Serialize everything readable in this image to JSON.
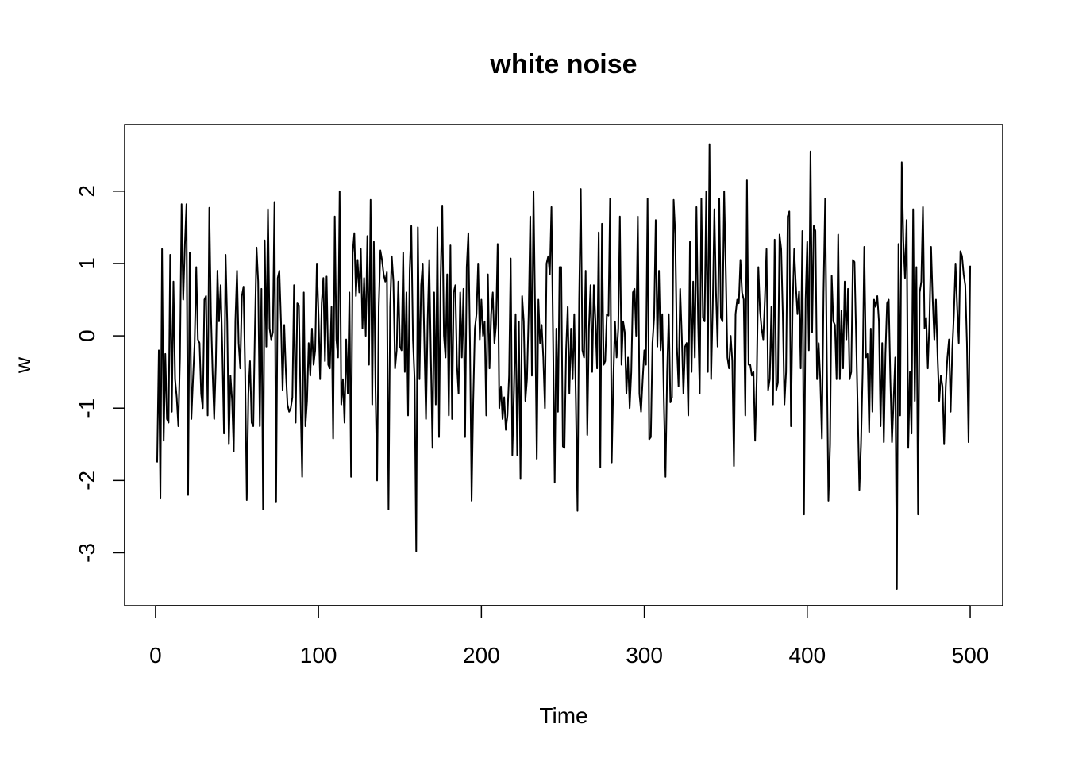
{
  "chart_data": {
    "type": "line",
    "title": "white noise",
    "xlabel": "Time",
    "ylabel": "w",
    "color": "#000000",
    "xlim": [
      -18.96,
      519.96
    ],
    "ylim": [
      -3.73,
      2.92
    ],
    "xticks": [
      0,
      100,
      200,
      300,
      400,
      500
    ],
    "yticks": [
      -3,
      -2,
      -1,
      0,
      1,
      2
    ],
    "grid": false,
    "x": [
      1,
      2,
      3,
      4,
      5,
      6,
      7,
      8,
      9,
      10,
      11,
      12,
      13,
      14,
      15,
      16,
      17,
      18,
      19,
      20,
      21,
      22,
      23,
      24,
      25,
      26,
      27,
      28,
      29,
      30,
      31,
      32,
      33,
      34,
      35,
      36,
      37,
      38,
      39,
      40,
      41,
      42,
      43,
      44,
      45,
      46,
      47,
      48,
      49,
      50,
      51,
      52,
      53,
      54,
      55,
      56,
      57,
      58,
      59,
      60,
      61,
      62,
      63,
      64,
      65,
      66,
      67,
      68,
      69,
      70,
      71,
      72,
      73,
      74,
      75,
      76,
      77,
      78,
      79,
      80,
      81,
      82,
      83,
      84,
      85,
      86,
      87,
      88,
      89,
      90,
      91,
      92,
      93,
      94,
      95,
      96,
      97,
      98,
      99,
      100,
      101,
      102,
      103,
      104,
      105,
      106,
      107,
      108,
      109,
      110,
      111,
      112,
      113,
      114,
      115,
      116,
      117,
      118,
      119,
      120,
      121,
      122,
      123,
      124,
      125,
      126,
      127,
      128,
      129,
      130,
      131,
      132,
      133,
      134,
      135,
      136,
      137,
      138,
      139,
      140,
      141,
      142,
      143,
      144,
      145,
      146,
      147,
      148,
      149,
      150,
      151,
      152,
      153,
      154,
      155,
      156,
      157,
      158,
      159,
      160,
      161,
      162,
      163,
      164,
      165,
      166,
      167,
      168,
      169,
      170,
      171,
      172,
      173,
      174,
      175,
      176,
      177,
      178,
      179,
      180,
      181,
      182,
      183,
      184,
      185,
      186,
      187,
      188,
      189,
      190,
      191,
      192,
      193,
      194,
      195,
      196,
      197,
      198,
      199,
      200,
      201,
      202,
      203,
      204,
      205,
      206,
      207,
      208,
      209,
      210,
      211,
      212,
      213,
      214,
      215,
      216,
      217,
      218,
      219,
      220,
      221,
      222,
      223,
      224,
      225,
      226,
      227,
      228,
      229,
      230,
      231,
      232,
      233,
      234,
      235,
      236,
      237,
      238,
      239,
      240,
      241,
      242,
      243,
      244,
      245,
      246,
      247,
      248,
      249,
      250,
      251,
      252,
      253,
      254,
      255,
      256,
      257,
      258,
      259,
      260,
      261,
      262,
      263,
      264,
      265,
      266,
      267,
      268,
      269,
      270,
      271,
      272,
      273,
      274,
      275,
      276,
      277,
      278,
      279,
      280,
      281,
      282,
      283,
      284,
      285,
      286,
      287,
      288,
      289,
      290,
      291,
      292,
      293,
      294,
      295,
      296,
      297,
      298,
      299,
      300,
      301,
      302,
      303,
      304,
      305,
      306,
      307,
      308,
      309,
      310,
      311,
      312,
      313,
      314,
      315,
      316,
      317,
      318,
      319,
      320,
      321,
      322,
      323,
      324,
      325,
      326,
      327,
      328,
      329,
      330,
      331,
      332,
      333,
      334,
      335,
      336,
      337,
      338,
      339,
      340,
      341,
      342,
      343,
      344,
      345,
      346,
      347,
      348,
      349,
      350,
      351,
      352,
      353,
      354,
      355,
      356,
      357,
      358,
      359,
      360,
      361,
      362,
      363,
      364,
      365,
      366,
      367,
      368,
      369,
      370,
      371,
      372,
      373,
      374,
      375,
      376,
      377,
      378,
      379,
      380,
      381,
      382,
      383,
      384,
      385,
      386,
      387,
      388,
      389,
      390,
      391,
      392,
      393,
      394,
      395,
      396,
      397,
      398,
      399,
      400,
      401,
      402,
      403,
      404,
      405,
      406,
      407,
      408,
      409,
      410,
      411,
      412,
      413,
      414,
      415,
      416,
      417,
      418,
      419,
      420,
      421,
      422,
      423,
      424,
      425,
      426,
      427,
      428,
      429,
      430,
      431,
      432,
      433,
      434,
      435,
      436,
      437,
      438,
      439,
      440,
      441,
      442,
      443,
      444,
      445,
      446,
      447,
      448,
      449,
      450,
      451,
      452,
      453,
      454,
      455,
      456,
      457,
      458,
      459,
      460,
      461,
      462,
      463,
      464,
      465,
      466,
      467,
      468,
      469,
      470,
      471,
      472,
      473,
      474,
      475,
      476,
      477,
      478,
      479,
      480,
      481,
      482,
      483,
      484,
      485,
      486,
      487,
      488,
      489,
      490,
      491,
      492,
      493,
      494,
      495,
      496,
      497,
      498,
      499,
      500
    ],
    "values": [
      -1.75,
      -0.2,
      -2.25,
      1.2,
      -1.45,
      -0.25,
      -1.15,
      -1.2,
      1.12,
      -1.05,
      0.75,
      -0.6,
      -0.85,
      -1.25,
      -0.3,
      1.82,
      0.5,
      1.25,
      1.82,
      -2.2,
      1.15,
      -1.15,
      -0.6,
      -0.1,
      0.95,
      -0.05,
      -0.1,
      -0.8,
      -1.0,
      0.5,
      0.55,
      -1.1,
      1.77,
      0.3,
      -0.5,
      -1.15,
      -0.4,
      0.9,
      0.2,
      0.7,
      -0.2,
      -1.35,
      1.12,
      0.2,
      -1.5,
      -0.55,
      -0.9,
      -1.6,
      0.2,
      0.9,
      -0.1,
      -0.45,
      0.55,
      0.68,
      -0.5,
      -2.27,
      -0.8,
      -0.35,
      -1.2,
      -1.25,
      0.1,
      1.22,
      0.75,
      -1.25,
      0.65,
      -2.4,
      1.32,
      -0.15,
      1.75,
      0.1,
      -0.05,
      0.05,
      1.85,
      -2.3,
      0.8,
      0.9,
      0.2,
      -0.75,
      0.15,
      -0.5,
      -0.95,
      -1.05,
      -1.0,
      -0.85,
      0.7,
      -1.2,
      0.45,
      0.42,
      -0.9,
      -1.95,
      0.6,
      -1.25,
      -0.9,
      -0.1,
      -0.55,
      0.1,
      -0.4,
      -0.2,
      1.0,
      0.3,
      -0.6,
      0.45,
      0.8,
      -0.35,
      0.82,
      -0.4,
      -0.45,
      0.4,
      -1.42,
      1.65,
      -0.05,
      -0.3,
      2.0,
      -0.95,
      -0.6,
      -1.2,
      -0.05,
      -0.8,
      0.6,
      -1.95,
      1.15,
      1.42,
      0.55,
      1.05,
      0.6,
      1.2,
      0.1,
      0.8,
      0.0,
      1.38,
      -0.4,
      1.88,
      -0.95,
      1.3,
      -0.7,
      -2.0,
      0.4,
      1.18,
      1.05,
      0.85,
      0.75,
      0.88,
      -2.4,
      0.4,
      1.1,
      0.75,
      -0.45,
      -0.2,
      0.75,
      -0.15,
      -0.2,
      1.15,
      -0.5,
      0.6,
      -1.1,
      0.9,
      1.52,
      -0.05,
      -0.6,
      -2.98,
      1.5,
      -0.6,
      0.7,
      1.0,
      -0.1,
      -1.15,
      0.2,
      1.05,
      -0.3,
      -1.55,
      0.6,
      -0.95,
      1.5,
      -1.4,
      0.8,
      1.8,
      0.0,
      -0.3,
      0.85,
      -1.1,
      1.25,
      -1.15,
      0.6,
      0.7,
      -0.4,
      -0.8,
      0.6,
      -0.3,
      0.65,
      -1.4,
      0.95,
      1.42,
      -0.1,
      -2.28,
      -0.9,
      0.1,
      0.3,
      1.0,
      -0.05,
      0.5,
      0.0,
      0.2,
      -1.1,
      0.85,
      -0.45,
      0.3,
      0.6,
      -0.1,
      0.15,
      1.27,
      -1.0,
      -0.7,
      -1.15,
      -0.85,
      -1.3,
      -1.1,
      -0.55,
      1.07,
      -1.65,
      -0.75,
      0.3,
      -1.65,
      0.2,
      -1.98,
      0.55,
      0.2,
      -0.9,
      -0.6,
      0.3,
      1.65,
      -0.55,
      2.0,
      0.3,
      -1.7,
      0.5,
      -0.1,
      0.15,
      -0.3,
      -1.0,
      1.0,
      1.1,
      0.85,
      1.78,
      -0.05,
      -2.03,
      0.1,
      -1.05,
      0.95,
      0.95,
      -1.53,
      -1.55,
      -0.2,
      0.4,
      -0.8,
      0.1,
      -0.6,
      0.3,
      -0.9,
      -2.42,
      0.5,
      2.03,
      -0.2,
      -0.3,
      0.9,
      -1.37,
      0.1,
      0.7,
      -0.5,
      0.7,
      0.2,
      -0.45,
      1.43,
      -1.82,
      1.55,
      -0.4,
      -0.35,
      0.3,
      0.28,
      1.9,
      -1.75,
      -0.6,
      0.2,
      -0.3,
      0.1,
      1.65,
      -0.4,
      0.2,
      0.05,
      -0.8,
      -0.3,
      -1.0,
      -0.5,
      0.6,
      0.65,
      0.0,
      1.65,
      -0.8,
      -1.05,
      -0.6,
      -0.2,
      -0.4,
      1.9,
      -1.43,
      -1.4,
      -0.1,
      0.25,
      1.6,
      -0.15,
      0.9,
      -0.2,
      0.3,
      -0.9,
      -1.95,
      -0.5,
      0.3,
      -0.92,
      -0.85,
      1.88,
      1.4,
      -0.15,
      -0.7,
      0.65,
      0.0,
      -0.8,
      -0.15,
      -0.1,
      -1.1,
      1.3,
      -0.5,
      0.75,
      -0.3,
      1.78,
      0.2,
      -0.8,
      1.9,
      0.25,
      0.2,
      2.0,
      -0.5,
      2.65,
      -0.6,
      0.4,
      1.75,
      0.6,
      -0.15,
      1.9,
      0.25,
      0.2,
      2.0,
      0.9,
      -0.3,
      -0.45,
      0.0,
      -0.35,
      -1.8,
      0.3,
      0.5,
      0.45,
      1.05,
      0.6,
      0.5,
      -1.1,
      2.15,
      -0.4,
      -0.4,
      -0.55,
      -0.5,
      -1.45,
      -0.6,
      0.95,
      0.35,
      0.1,
      -0.05,
      0.5,
      1.2,
      -0.75,
      -0.6,
      0.4,
      -0.95,
      1.33,
      -0.75,
      -0.65,
      1.4,
      1.2,
      0.3,
      -0.95,
      -0.5,
      1.65,
      1.72,
      -1.25,
      0.4,
      1.2,
      0.7,
      0.3,
      0.62,
      -0.45,
      1.45,
      -2.47,
      0.5,
      1.3,
      -0.2,
      2.55,
      0.05,
      1.52,
      1.45,
      -0.6,
      -0.1,
      -0.6,
      -1.42,
      0.6,
      1.9,
      -0.3,
      -2.28,
      -1.5,
      0.83,
      0.2,
      0.15,
      -0.6,
      1.4,
      -0.6,
      0.35,
      -0.45,
      0.75,
      -0.05,
      0.65,
      -0.6,
      -0.5,
      1.05,
      1.02,
      0.0,
      -1.05,
      -2.13,
      -1.5,
      -0.5,
      1.23,
      -0.3,
      -0.25,
      -1.33,
      0.1,
      -1.05,
      0.5,
      0.4,
      0.55,
      0.2,
      -1.25,
      -0.1,
      -1.47,
      -0.25,
      0.45,
      0.5,
      -0.6,
      -1.47,
      -0.9,
      -0.3,
      -3.5,
      1.27,
      -1.1,
      2.4,
      1.3,
      0.8,
      1.6,
      -1.55,
      -0.5,
      -1.35,
      1.75,
      -0.9,
      0.95,
      -2.47,
      0.6,
      0.75,
      1.78,
      0.1,
      0.25,
      -0.45,
      0.2,
      1.23,
      0.5,
      -0.05,
      0.5,
      -0.3,
      -0.9,
      -0.55,
      -0.7,
      -1.5,
      -0.7,
      -0.3,
      -0.05,
      -1.05,
      -0.2,
      0.3,
      1.0,
      0.4,
      -0.1,
      1.17,
      1.1,
      0.85,
      0.7,
      -0.1,
      -1.47,
      0.97
    ]
  }
}
